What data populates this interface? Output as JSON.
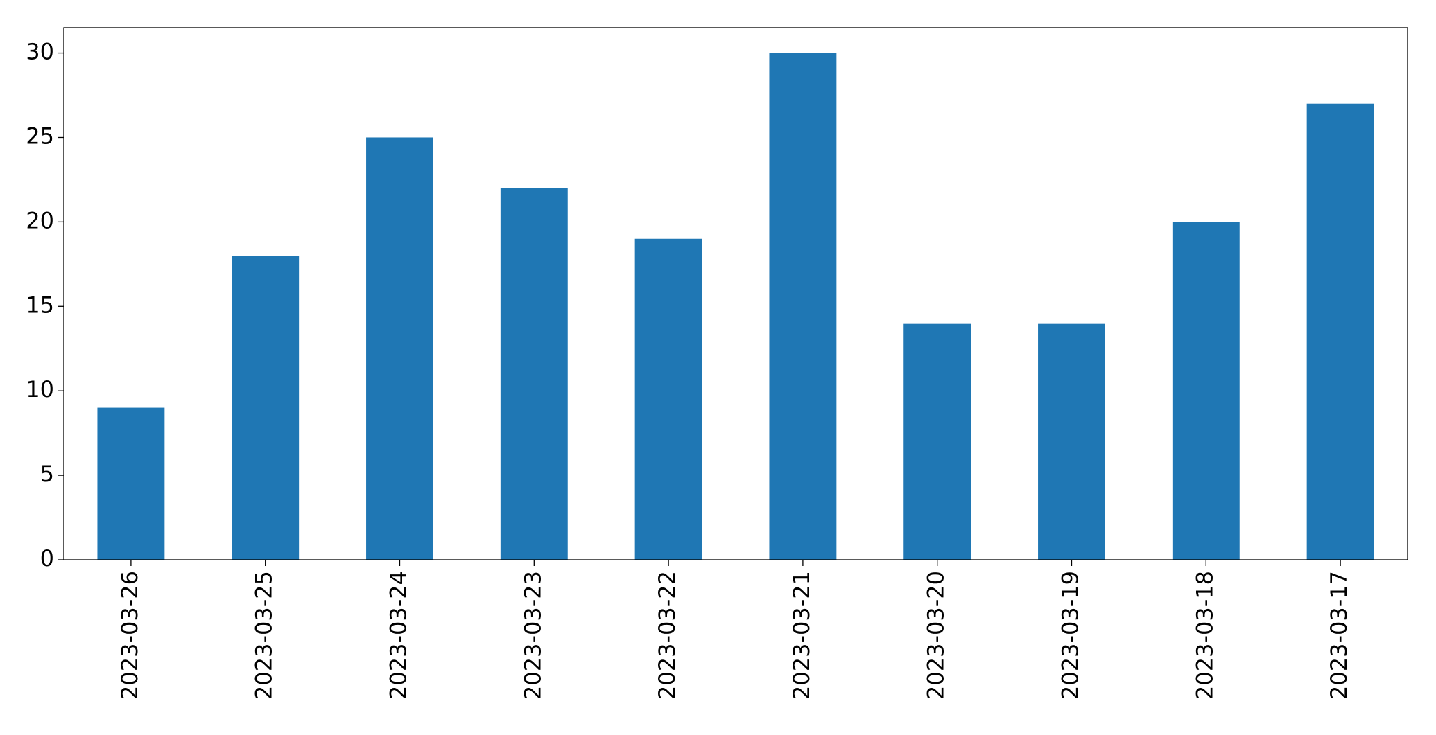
{
  "chart_data": {
    "type": "bar",
    "categories": [
      "2023-03-26",
      "2023-03-25",
      "2023-03-24",
      "2023-03-23",
      "2023-03-22",
      "2023-03-21",
      "2023-03-20",
      "2023-03-19",
      "2023-03-18",
      "2023-03-17"
    ],
    "values": [
      9,
      18,
      25,
      22,
      19,
      30,
      14,
      14,
      20,
      27
    ],
    "color": "#1f77b4",
    "ylim": [
      0,
      31.5
    ],
    "yticks": [
      0,
      5,
      10,
      15,
      20,
      25,
      30
    ],
    "grid": false
  }
}
